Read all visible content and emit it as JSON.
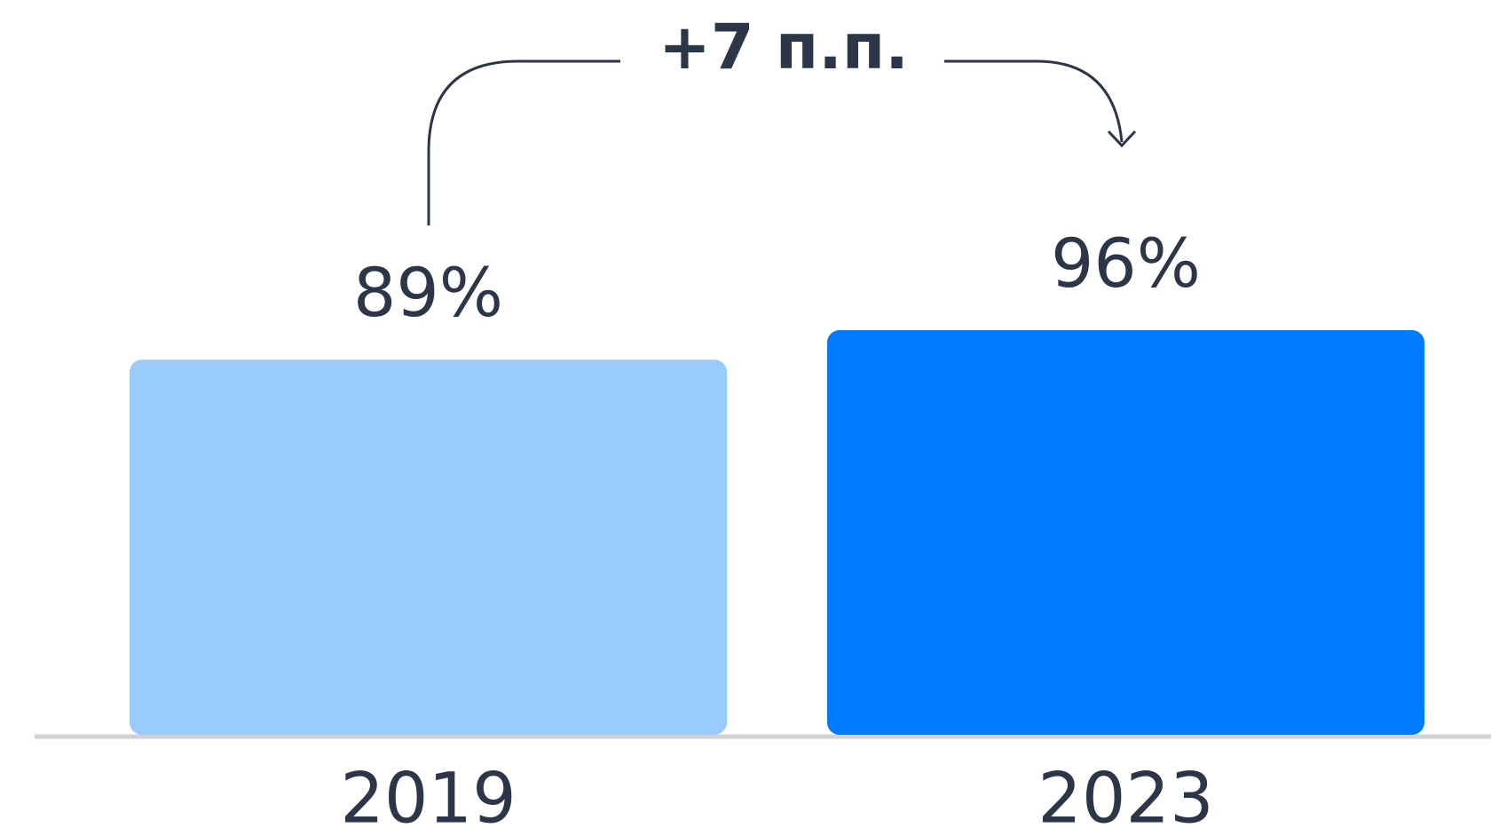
{
  "chart_data": {
    "type": "bar",
    "categories": [
      "2019",
      "2023"
    ],
    "values": [
      89,
      96
    ],
    "value_labels": [
      "89%",
      "96%"
    ],
    "colors": [
      "#9acbfd",
      "#007aff"
    ],
    "annotation": "+7 п.п."
  }
}
